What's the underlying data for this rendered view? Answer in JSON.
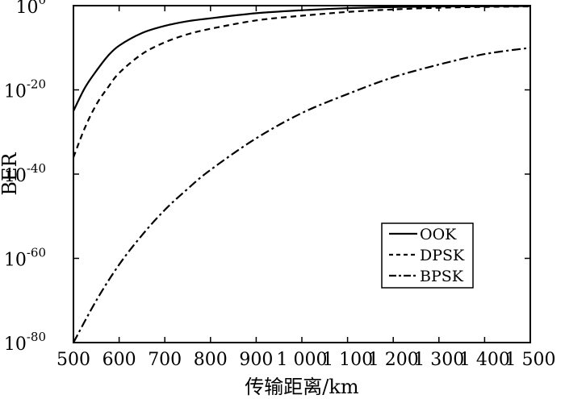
{
  "chart_data": {
    "type": "line",
    "title": "",
    "xlabel": "传输距离/km",
    "ylabel": "BER",
    "xlim": [
      500,
      1500
    ],
    "ylim_exponent": [
      -80,
      0
    ],
    "y_scale": "log",
    "y_tick_base": "10",
    "x_ticks": [
      {
        "value": 500,
        "label": "500"
      },
      {
        "value": 600,
        "label": "600"
      },
      {
        "value": 700,
        "label": "700"
      },
      {
        "value": 800,
        "label": "800"
      },
      {
        "value": 900,
        "label": "900"
      },
      {
        "value": 1000,
        "label": "1 000"
      },
      {
        "value": 1100,
        "label": "1 100"
      },
      {
        "value": 1200,
        "label": "1 200"
      },
      {
        "value": 1300,
        "label": "1 300"
      },
      {
        "value": 1400,
        "label": "1 400"
      },
      {
        "value": 1500,
        "label": "1 500"
      }
    ],
    "y_ticks": [
      {
        "exponent": 0,
        "label": "0"
      },
      {
        "exponent": -20,
        "label": "-20"
      },
      {
        "exponent": -40,
        "label": "-40"
      },
      {
        "exponent": -60,
        "label": "-60"
      },
      {
        "exponent": -80,
        "label": "-80"
      }
    ],
    "grid": false,
    "legend_position": "lower-right",
    "series": [
      {
        "name": "OOK",
        "style": "solid",
        "x": [
          500,
          525,
          550,
          575,
          600,
          650,
          700,
          750,
          800,
          900,
          1000,
          1100,
          1200,
          1300,
          1400,
          1500
        ],
        "log10_y": [
          -25,
          -19.5,
          -15.5,
          -12,
          -9.5,
          -6.5,
          -4.8,
          -3.7,
          -3,
          -1.8,
          -1.1,
          -0.6,
          -0.35,
          -0.2,
          -0.15,
          -0.1
        ]
      },
      {
        "name": "DPSK",
        "style": "dashed",
        "x": [
          500,
          525,
          550,
          575,
          600,
          650,
          700,
          750,
          800,
          900,
          1000,
          1100,
          1200,
          1300,
          1400,
          1500
        ],
        "log10_y": [
          -36,
          -29,
          -23.5,
          -19.5,
          -16,
          -11.5,
          -8.7,
          -6.8,
          -5.5,
          -3.5,
          -2.4,
          -1.5,
          -0.9,
          -0.5,
          -0.3,
          -0.2
        ]
      },
      {
        "name": "BPSK",
        "style": "dashdot",
        "x": [
          500,
          550,
          600,
          650,
          700,
          750,
          800,
          900,
          1000,
          1100,
          1200,
          1300,
          1400,
          1500
        ],
        "log10_y": [
          -80,
          -70,
          -61.5,
          -54.5,
          -48.5,
          -43.5,
          -39,
          -31.5,
          -25.5,
          -21,
          -17,
          -14,
          -11.5,
          -10
        ]
      }
    ]
  }
}
